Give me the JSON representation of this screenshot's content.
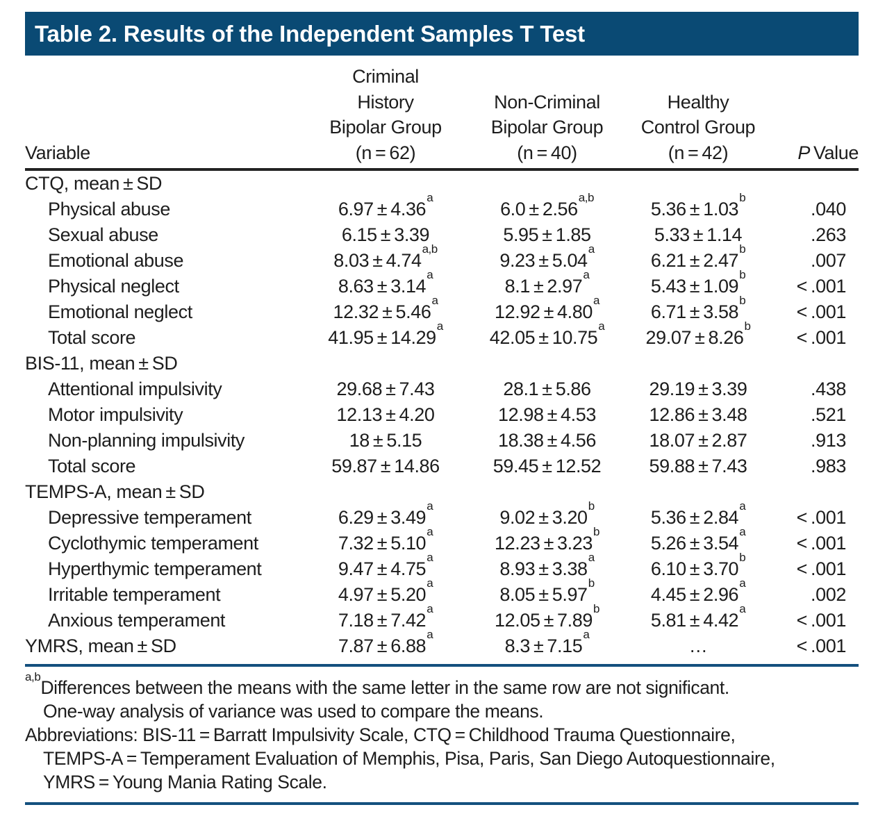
{
  "title": "Table 2. Results of the Independent Samples T Test",
  "colors": {
    "title_bar_bg": "#0a4a74",
    "title_text": "#ffffff",
    "header_rule": "#232323",
    "blue_rule": "#14507e",
    "body_text": "#1d1d1d"
  },
  "table": {
    "columns": {
      "variable": "Variable",
      "group1": "Criminal\nHistory\nBipolar Group\n(n = 62)",
      "group2": "Non-Criminal\nBipolar Group\n(n = 40)",
      "group3": "Healthy\nControl Group\n(n = 42)",
      "p_italic": "P",
      "p_rest": " Value"
    },
    "rows": [
      {
        "label": "CTQ, mean ± SD",
        "section": true,
        "g1": {
          "v": "",
          "s": ""
        },
        "g2": {
          "v": "",
          "s": ""
        },
        "g3": {
          "v": "",
          "s": ""
        },
        "p": ""
      },
      {
        "label": "Physical abuse",
        "section": false,
        "g1": {
          "v": "6.97 ± 4.36",
          "s": "a"
        },
        "g2": {
          "v": "6.0 ± 2.56",
          "s": "a,b"
        },
        "g3": {
          "v": "5.36 ± 1.03",
          "s": "b"
        },
        "p": ".040"
      },
      {
        "label": "Sexual abuse",
        "section": false,
        "g1": {
          "v": "6.15 ± 3.39",
          "s": ""
        },
        "g2": {
          "v": "5.95 ± 1.85",
          "s": ""
        },
        "g3": {
          "v": "5.33 ± 1.14",
          "s": ""
        },
        "p": ".263"
      },
      {
        "label": "Emotional abuse",
        "section": false,
        "g1": {
          "v": "8.03 ± 4.74",
          "s": "a,b"
        },
        "g2": {
          "v": "9.23 ± 5.04",
          "s": "a"
        },
        "g3": {
          "v": "6.21 ± 2.47",
          "s": "b"
        },
        "p": ".007"
      },
      {
        "label": "Physical neglect",
        "section": false,
        "g1": {
          "v": "8.63 ± 3.14",
          "s": "a"
        },
        "g2": {
          "v": "8.1 ± 2.97",
          "s": "a"
        },
        "g3": {
          "v": "5.43 ± 1.09",
          "s": "b"
        },
        "p": "< .001"
      },
      {
        "label": "Emotional neglect",
        "section": false,
        "g1": {
          "v": "12.32 ± 5.46",
          "s": "a"
        },
        "g2": {
          "v": "12.92 ± 4.80",
          "s": "a"
        },
        "g3": {
          "v": "6.71 ± 3.58",
          "s": "b"
        },
        "p": "< .001"
      },
      {
        "label": "Total score",
        "section": false,
        "g1": {
          "v": "41.95 ± 14.29",
          "s": "a"
        },
        "g2": {
          "v": "42.05 ± 10.75",
          "s": "a"
        },
        "g3": {
          "v": "29.07 ± 8.26",
          "s": "b"
        },
        "p": "< .001"
      },
      {
        "label": "BIS-11, mean ± SD",
        "section": true,
        "g1": {
          "v": "",
          "s": ""
        },
        "g2": {
          "v": "",
          "s": ""
        },
        "g3": {
          "v": "",
          "s": ""
        },
        "p": ""
      },
      {
        "label": "Attentional impulsivity",
        "section": false,
        "g1": {
          "v": "29.68 ± 7.43",
          "s": ""
        },
        "g2": {
          "v": "28.1 ± 5.86",
          "s": ""
        },
        "g3": {
          "v": "29.19 ± 3.39",
          "s": ""
        },
        "p": ".438"
      },
      {
        "label": "Motor impulsivity",
        "section": false,
        "g1": {
          "v": "12.13 ± 4.20",
          "s": ""
        },
        "g2": {
          "v": "12.98 ± 4.53",
          "s": ""
        },
        "g3": {
          "v": "12.86 ± 3.48",
          "s": ""
        },
        "p": ".521"
      },
      {
        "label": "Non-planning impulsivity",
        "section": false,
        "g1": {
          "v": "18 ± 5.15",
          "s": ""
        },
        "g2": {
          "v": "18.38 ± 4.56",
          "s": ""
        },
        "g3": {
          "v": "18.07 ± 2.87",
          "s": ""
        },
        "p": ".913"
      },
      {
        "label": "Total score",
        "section": false,
        "g1": {
          "v": "59.87 ± 14.86",
          "s": ""
        },
        "g2": {
          "v": "59.45 ± 12.52",
          "s": ""
        },
        "g3": {
          "v": "59.88 ± 7.43",
          "s": ""
        },
        "p": ".983"
      },
      {
        "label": "TEMPS-A, mean ± SD",
        "section": true,
        "g1": {
          "v": "",
          "s": ""
        },
        "g2": {
          "v": "",
          "s": ""
        },
        "g3": {
          "v": "",
          "s": ""
        },
        "p": ""
      },
      {
        "label": "Depressive temperament",
        "section": false,
        "g1": {
          "v": "6.29 ± 3.49",
          "s": "a"
        },
        "g2": {
          "v": "9.02 ± 3.20",
          "s": "b"
        },
        "g3": {
          "v": "5.36 ± 2.84",
          "s": "a"
        },
        "p": "< .001"
      },
      {
        "label": "Cyclothymic temperament",
        "section": false,
        "g1": {
          "v": "7.32 ± 5.10",
          "s": "a"
        },
        "g2": {
          "v": "12.23 ± 3.23",
          "s": "b"
        },
        "g3": {
          "v": "5.26 ± 3.54",
          "s": "a"
        },
        "p": "< .001"
      },
      {
        "label": "Hyperthymic temperament",
        "section": false,
        "g1": {
          "v": "9.47 ± 4.75",
          "s": "a"
        },
        "g2": {
          "v": "8.93 ± 3.38",
          "s": "a"
        },
        "g3": {
          "v": "6.10 ± 3.70",
          "s": "b"
        },
        "p": "< .001"
      },
      {
        "label": "Irritable temperament",
        "section": false,
        "g1": {
          "v": "4.97 ± 5.20",
          "s": "a"
        },
        "g2": {
          "v": "8.05 ± 5.97",
          "s": "b"
        },
        "g3": {
          "v": "4.45 ± 2.96",
          "s": "a"
        },
        "p": ".002"
      },
      {
        "label": "Anxious temperament",
        "section": false,
        "g1": {
          "v": "7.18 ± 7.42",
          "s": "a"
        },
        "g2": {
          "v": "12.05 ± 7.89",
          "s": "b"
        },
        "g3": {
          "v": "5.81 ± 4.42",
          "s": "a"
        },
        "p": "< .001"
      },
      {
        "label": "YMRS, mean ± SD",
        "section": true,
        "g1": {
          "v": "7.87 ± 6.88",
          "s": "a"
        },
        "g2": {
          "v": "8.3 ± 7.15",
          "s": "a"
        },
        "g3": {
          "v": "…",
          "s": ""
        },
        "p": "< .001"
      }
    ]
  },
  "footnotes": {
    "sig_sup": "a,b",
    "lines": [
      "Differences between the means with the same letter in the same row are not significant.",
      "One-way analysis of variance was used to compare the means.",
      "Abbreviations: BIS-11 = Barratt Impulsivity Scale, CTQ = Childhood Trauma Questionnaire,",
      "TEMPS-A = Temperament Evaluation of Memphis, Pisa, Paris, San Diego Autoquestionnaire,",
      "YMRS = Young Mania Rating Scale."
    ]
  }
}
